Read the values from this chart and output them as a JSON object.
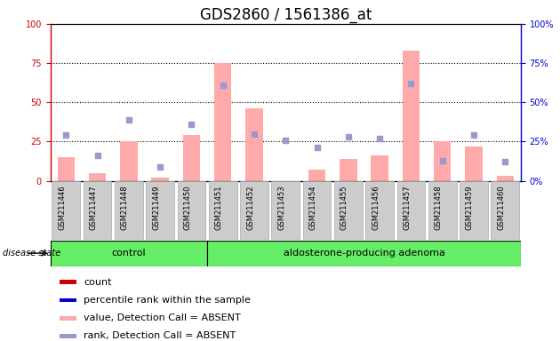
{
  "title": "GDS2860 / 1561386_at",
  "samples": [
    "GSM211446",
    "GSM211447",
    "GSM211448",
    "GSM211449",
    "GSM211450",
    "GSM211451",
    "GSM211452",
    "GSM211453",
    "GSM211454",
    "GSM211455",
    "GSM211456",
    "GSM211457",
    "GSM211458",
    "GSM211459",
    "GSM211460"
  ],
  "bar_values": [
    15,
    5,
    25,
    2,
    29,
    75,
    46,
    0,
    7,
    14,
    16,
    83,
    25,
    22,
    3
  ],
  "dot_values": [
    29,
    16,
    39,
    9,
    36,
    61,
    30,
    26,
    21,
    28,
    27,
    62,
    13,
    29,
    12
  ],
  "bar_color": "#ffaaaa",
  "dot_color": "#9999cc",
  "ylim": [
    0,
    100
  ],
  "yticks": [
    0,
    25,
    50,
    75,
    100
  ],
  "ytick_labels_left": [
    "0",
    "25",
    "50",
    "75",
    "100"
  ],
  "ytick_labels_right": [
    "0%",
    "25%",
    "50%",
    "75%",
    "100%"
  ],
  "left_axis_color": "#cc0000",
  "right_axis_color": "#0000cc",
  "control_count": 5,
  "group_labels": [
    "control",
    "aldosterone-producing adenoma"
  ],
  "group_bg_color": "#66ee66",
  "disease_state_label": "disease state",
  "xticklabel_bg": "#cccccc",
  "xticklabel_edge": "#aaaaaa",
  "legend_items": [
    {
      "label": "count",
      "color": "#cc0000"
    },
    {
      "label": "percentile rank within the sample",
      "color": "#0000cc"
    },
    {
      "label": "value, Detection Call = ABSENT",
      "color": "#ffaaaa"
    },
    {
      "label": "rank, Detection Call = ABSENT",
      "color": "#9999cc"
    }
  ],
  "title_fontsize": 12,
  "tick_fontsize": 7,
  "sample_fontsize": 6,
  "legend_fontsize": 8,
  "group_fontsize": 8
}
